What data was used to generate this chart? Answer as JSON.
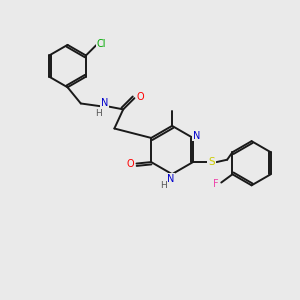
{
  "background_color": "#eaeaea",
  "bond_color": "#1a1a1a",
  "atom_colors": {
    "N": "#0000cc",
    "O": "#ff0000",
    "S": "#cccc00",
    "Cl": "#00aa00",
    "F": "#ee44aa",
    "H": "#555555",
    "C": "#1a1a1a"
  },
  "figsize": [
    3.0,
    3.0
  ],
  "dpi": 100
}
